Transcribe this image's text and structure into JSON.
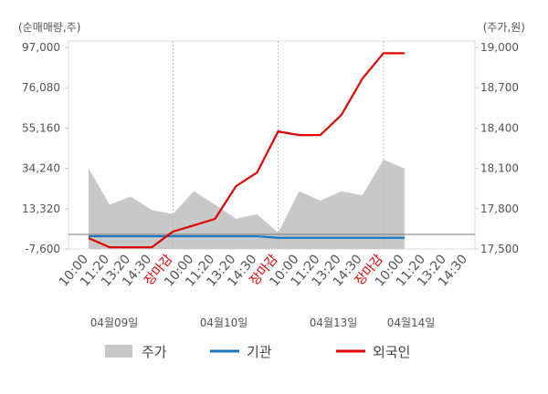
{
  "chart_data": {
    "type": "line",
    "y_label": "(순매매량,주)",
    "y2_label": "(주가,원)",
    "categories": [
      "10:00",
      "11:20",
      "13:20",
      "14:30",
      "장마감",
      "10:00",
      "11:20",
      "13:20",
      "14:30",
      "장마감",
      "10:00",
      "11:20",
      "13:20",
      "14:30",
      "장마감",
      "10:00",
      "11:20",
      "13:20",
      "14:30"
    ],
    "category_colors": [
      "#555",
      "#555",
      "#555",
      "#555",
      "#e00000",
      "#555",
      "#555",
      "#555",
      "#555",
      "#e00000",
      "#555",
      "#555",
      "#555",
      "#555",
      "#e00000",
      "#555",
      "#555",
      "#555",
      "#555"
    ],
    "dates": [
      "04월09일",
      "04월10일",
      "04월13일",
      "04월14일"
    ],
    "series": [
      {
        "name": "주가",
        "color": "#c8c8c8",
        "axis": "y2",
        "kind": "area",
        "values": [
          18100,
          17830,
          17890,
          17790,
          17760,
          17930,
          17830,
          17725,
          17760,
          17620,
          17930,
          17860,
          17930,
          17900,
          18165,
          18100,
          null,
          null,
          null
        ]
      },
      {
        "name": "기관",
        "color": "#1a78c2",
        "kind": "line",
        "values": [
          -1000,
          -1000,
          -1000,
          -1000,
          -1000,
          -1000,
          -1000,
          -1000,
          -1000,
          -1800,
          -1800,
          -1800,
          -1800,
          -1800,
          -1800,
          -1800,
          null,
          null,
          null
        ]
      },
      {
        "name": "외국인",
        "color": "#e00000",
        "kind": "line",
        "values": [
          -2000,
          -6700,
          -6700,
          -6700,
          1400,
          4700,
          8000,
          25000,
          32100,
          53400,
          51500,
          51500,
          61900,
          80800,
          94000,
          94000,
          null,
          null,
          null
        ]
      }
    ],
    "ylim": [
      -7600,
      97000
    ],
    "yticks": [
      {
        "value": -7600,
        "label": "-7,600"
      },
      {
        "value": 13320,
        "label": "13,320"
      },
      {
        "value": 34240,
        "label": "34,240"
      },
      {
        "value": 55160,
        "label": "55,160"
      },
      {
        "value": 76080,
        "label": "76,080"
      },
      {
        "value": 97000,
        "label": "97,000"
      }
    ],
    "y2lim": [
      17500,
      19000
    ],
    "y2ticks": [
      {
        "value": 17500,
        "label": "17,500"
      },
      {
        "value": 17800,
        "label": "17,800"
      },
      {
        "value": 18100,
        "label": "18,100"
      },
      {
        "value": 18400,
        "label": "18,400"
      },
      {
        "value": 18700,
        "label": "18,700"
      },
      {
        "value": 19000,
        "label": "19,000"
      }
    ]
  }
}
